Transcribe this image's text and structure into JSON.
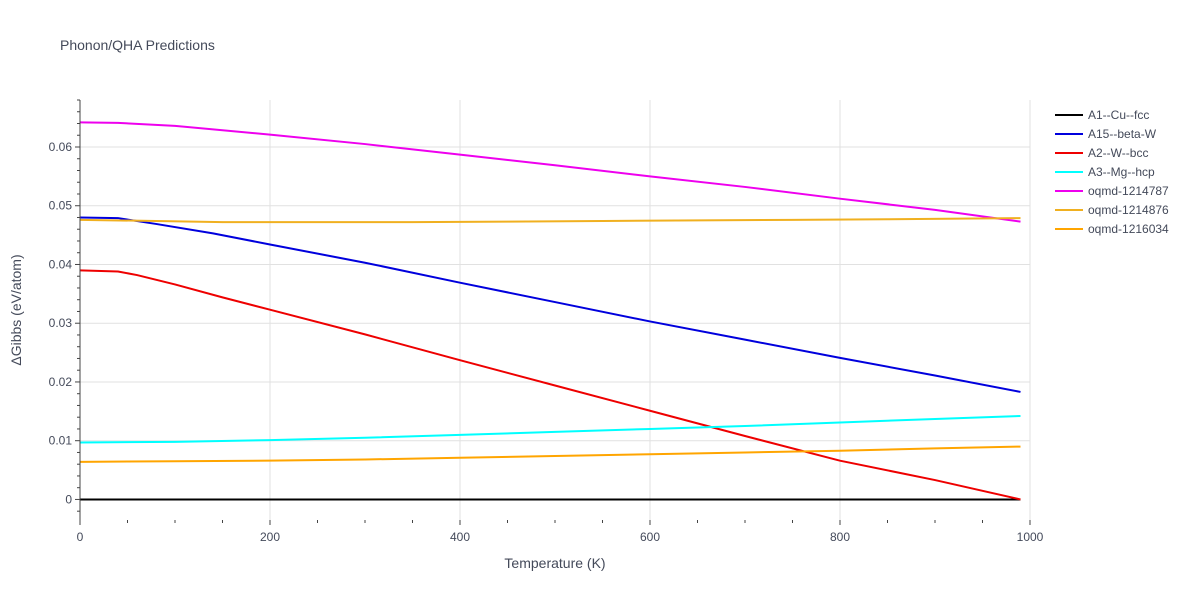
{
  "chart_data": {
    "type": "line",
    "title": "Phonon/QHA Predictions",
    "xlabel": "Temperature (K)",
    "ylabel": "ΔGibbs (eV/atom)",
    "xlim": [
      0,
      1000
    ],
    "ylim": [
      -0.0035,
      0.068
    ],
    "xticks": [
      0,
      200,
      400,
      600,
      800,
      1000
    ],
    "xtick_labels": [
      "0",
      "200",
      "400",
      "600",
      "800",
      "1000"
    ],
    "yticks": [
      0,
      0.01,
      0.02,
      0.03,
      0.04,
      0.05,
      0.06
    ],
    "ytick_labels": [
      "0",
      "0.01",
      "0.02",
      "0.03",
      "0.04",
      "0.05",
      "0.06"
    ],
    "grid": true,
    "legend_position": "top-right",
    "series": [
      {
        "name": "A1--Cu--fcc",
        "color": "#000000",
        "x": [
          0,
          200,
          400,
          600,
          800,
          990
        ],
        "y": [
          0,
          0,
          0,
          0,
          0,
          0
        ]
      },
      {
        "name": "A15--beta-W",
        "color": "#0000dd",
        "x": [
          0,
          40,
          80,
          140,
          200,
          300,
          400,
          500,
          600,
          700,
          800,
          900,
          990
        ],
        "y": [
          0.048,
          0.0479,
          0.0469,
          0.0453,
          0.0434,
          0.0403,
          0.0369,
          0.0336,
          0.0303,
          0.0272,
          0.0241,
          0.0211,
          0.0183
        ]
      },
      {
        "name": "A2--W--bcc",
        "color": "#ee0000",
        "x": [
          0,
          40,
          60,
          100,
          150,
          200,
          300,
          400,
          500,
          600,
          700,
          800,
          900,
          990
        ],
        "y": [
          0.039,
          0.0388,
          0.0382,
          0.0366,
          0.0344,
          0.0323,
          0.0281,
          0.0237,
          0.0194,
          0.0151,
          0.0108,
          0.0066,
          0.0033,
          0.0
        ]
      },
      {
        "name": "A3--Mg--hcp",
        "color": "#00ffff",
        "x": [
          0,
          100,
          200,
          300,
          400,
          500,
          600,
          700,
          800,
          900,
          990
        ],
        "y": [
          0.0097,
          0.0098,
          0.0101,
          0.0105,
          0.011,
          0.0115,
          0.012,
          0.0125,
          0.0131,
          0.0137,
          0.0142
        ]
      },
      {
        "name": "oqmd-1214787",
        "color": "#ee00ee",
        "x": [
          0,
          40,
          100,
          200,
          300,
          400,
          500,
          600,
          700,
          800,
          900,
          990
        ],
        "y": [
          0.0642,
          0.0641,
          0.0636,
          0.0621,
          0.0605,
          0.0587,
          0.0569,
          0.055,
          0.0532,
          0.0512,
          0.0493,
          0.0473
        ]
      },
      {
        "name": "oqmd-1214876",
        "color": "#f0b020",
        "x": [
          0,
          80,
          150,
          250,
          350,
          450,
          550,
          650,
          750,
          850,
          990
        ],
        "y": [
          0.0476,
          0.0474,
          0.0472,
          0.0472,
          0.0472,
          0.0473,
          0.0474,
          0.0475,
          0.0476,
          0.0477,
          0.0479
        ]
      },
      {
        "name": "oqmd-1216034",
        "color": "#ffa500",
        "x": [
          0,
          100,
          200,
          300,
          400,
          500,
          600,
          700,
          800,
          900,
          990
        ],
        "y": [
          0.0064,
          0.0065,
          0.0066,
          0.0068,
          0.0071,
          0.0074,
          0.0077,
          0.008,
          0.0083,
          0.0087,
          0.009
        ]
      }
    ]
  }
}
